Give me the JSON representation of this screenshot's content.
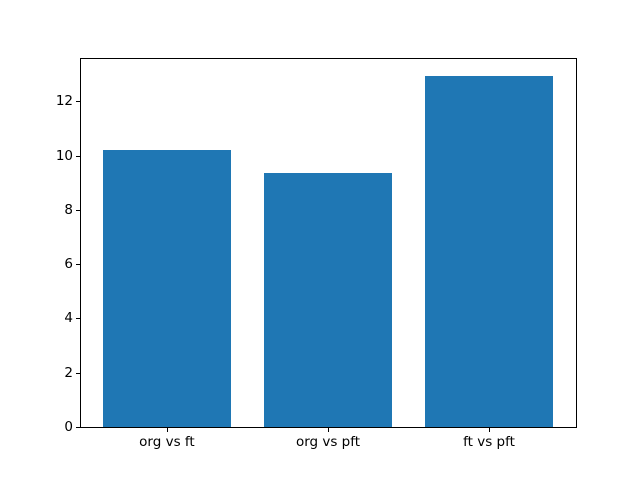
{
  "figure": {
    "background_color": "#ffffff",
    "title": ""
  },
  "chart_data": {
    "type": "bar",
    "categories": [
      "org vs ft",
      "org vs pft",
      "ft vs pft"
    ],
    "values": [
      10.2,
      9.35,
      12.95
    ],
    "title": "",
    "xlabel": "",
    "ylabel": "",
    "ylim": [
      0,
      13.6
    ],
    "yticks": [
      0,
      2,
      4,
      6,
      8,
      10,
      12
    ],
    "ytick_labels": [
      "0",
      "2",
      "4",
      "6",
      "8",
      "10",
      "12"
    ],
    "bar_color": "#1f77b4",
    "axis_color": "#000000",
    "tick_label_color": "#000000",
    "grid": false,
    "legend": null,
    "bar_width_ratio": 0.8
  }
}
